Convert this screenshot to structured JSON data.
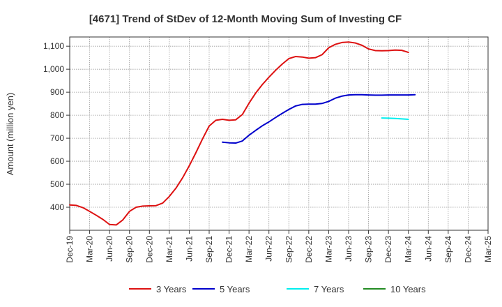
{
  "chart_data": {
    "type": "line",
    "title": "[4671]  Trend of StDev of 12-Month Moving Sum of Investing CF",
    "ylabel": "Amount (million yen)",
    "xlabel": "",
    "ylim": [
      300,
      1140
    ],
    "yticks": [
      400,
      500,
      600,
      700,
      800,
      900,
      1000,
      1100
    ],
    "ytick_labels": [
      "400",
      "500",
      "600",
      "700",
      "800",
      "900",
      "1,000",
      "1,100"
    ],
    "xlim": [
      "Dec-19",
      "Mar-25"
    ],
    "xtick_labels": [
      "Dec-19",
      "Mar-20",
      "Jun-20",
      "Sep-20",
      "Dec-20",
      "Mar-21",
      "Jun-21",
      "Sep-21",
      "Dec-21",
      "Mar-22",
      "Jun-22",
      "Sep-22",
      "Dec-22",
      "Mar-23",
      "Jun-23",
      "Sep-23",
      "Dec-23",
      "Mar-24",
      "Jun-24",
      "Sep-24",
      "Dec-24",
      "Mar-25"
    ],
    "grid": true,
    "legend_position": "bottom",
    "series": [
      {
        "name": "3 Years",
        "color": "#dd1111",
        "start": "Dec-19",
        "values": [
          410,
          408,
          398,
          382,
          365,
          347,
          325,
          323,
          345,
          382,
          400,
          405,
          406,
          407,
          418,
          447,
          483,
          528,
          580,
          637,
          697,
          753,
          778,
          782,
          778,
          780,
          803,
          852,
          896,
          933,
          965,
          995,
          1022,
          1046,
          1055,
          1053,
          1048,
          1050,
          1063,
          1093,
          1108,
          1116,
          1118,
          1114,
          1104,
          1088,
          1081,
          1080,
          1081,
          1083,
          1082,
          1073
        ]
      },
      {
        "name": "5 Years",
        "color": "#0000cc",
        "start": "Nov-21",
        "values": [
          683,
          680,
          679,
          688,
          713,
          734,
          754,
          771,
          790,
          808,
          825,
          840,
          847,
          848,
          848,
          851,
          860,
          874,
          883,
          888,
          889,
          889,
          888,
          887,
          887,
          888,
          888,
          888,
          888,
          889
        ]
      },
      {
        "name": "7 Years",
        "color": "#00eeee",
        "start": "Nov-23",
        "values": [
          788,
          787,
          786,
          784,
          782
        ]
      },
      {
        "name": "10 Years",
        "color": "#228b22",
        "start": "Mar-24",
        "values": []
      }
    ]
  }
}
